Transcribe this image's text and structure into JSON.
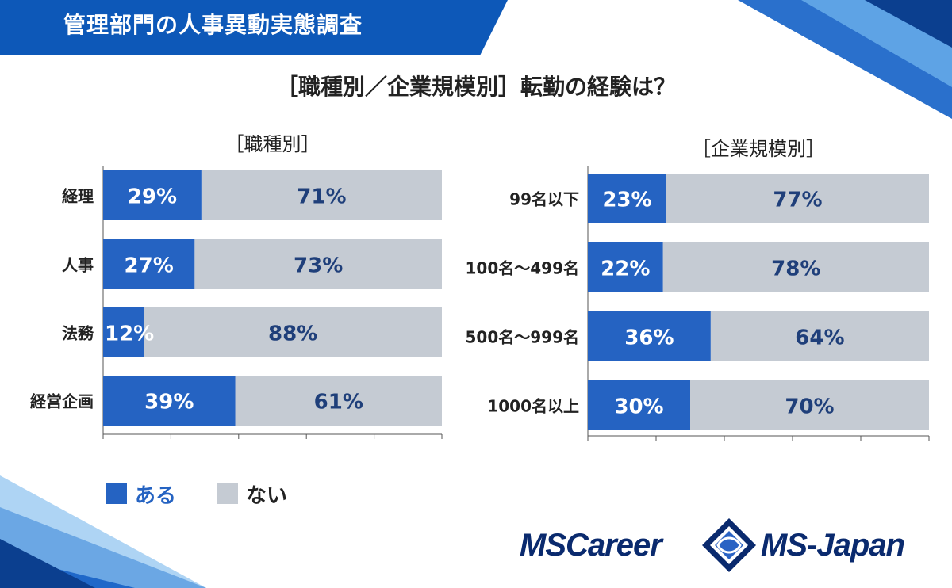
{
  "header": {
    "banner_title": "管理部門の人事異動実態調査",
    "main_title": "［職種別／企業規模別］転勤の経験は？"
  },
  "colors": {
    "banner": "#0d58b8",
    "yes": "#2563c2",
    "no": "#c5cbd3",
    "logo": "#0a2a6e"
  },
  "legend": [
    {
      "name": "ある",
      "color": "#2563c2"
    },
    {
      "name": "ない",
      "color": "#c5cbd3"
    }
  ],
  "chart_data": [
    {
      "type": "bar",
      "orientation": "horizontal-stacked",
      "title": "［職種別］",
      "categories": [
        "経理",
        "人事",
        "法務",
        "経営企画"
      ],
      "series": [
        {
          "name": "ある",
          "values": [
            29,
            27,
            12,
            39
          ],
          "labels": [
            "29%",
            "27%",
            "12%",
            "39%"
          ]
        },
        {
          "name": "ない",
          "values": [
            71,
            73,
            88,
            61
          ],
          "labels": [
            "71%",
            "73%",
            "88%",
            "61%"
          ]
        }
      ],
      "xlim": [
        0,
        100
      ]
    },
    {
      "type": "bar",
      "orientation": "horizontal-stacked",
      "title": "［企業規模別］",
      "categories": [
        "99名以下",
        "100名～499名",
        "500名～999名",
        "1000名以上"
      ],
      "series": [
        {
          "name": "ある",
          "values": [
            23,
            22,
            36,
            30
          ],
          "labels": [
            "23%",
            "22%",
            "36%",
            "30%"
          ]
        },
        {
          "name": "ない",
          "values": [
            77,
            78,
            64,
            70
          ],
          "labels": [
            "77%",
            "78%",
            "64%",
            "70%"
          ]
        }
      ],
      "xlim": [
        0,
        100
      ]
    }
  ],
  "logo": {
    "left_text": "MSCareer",
    "right_text": "MS-Japan"
  }
}
